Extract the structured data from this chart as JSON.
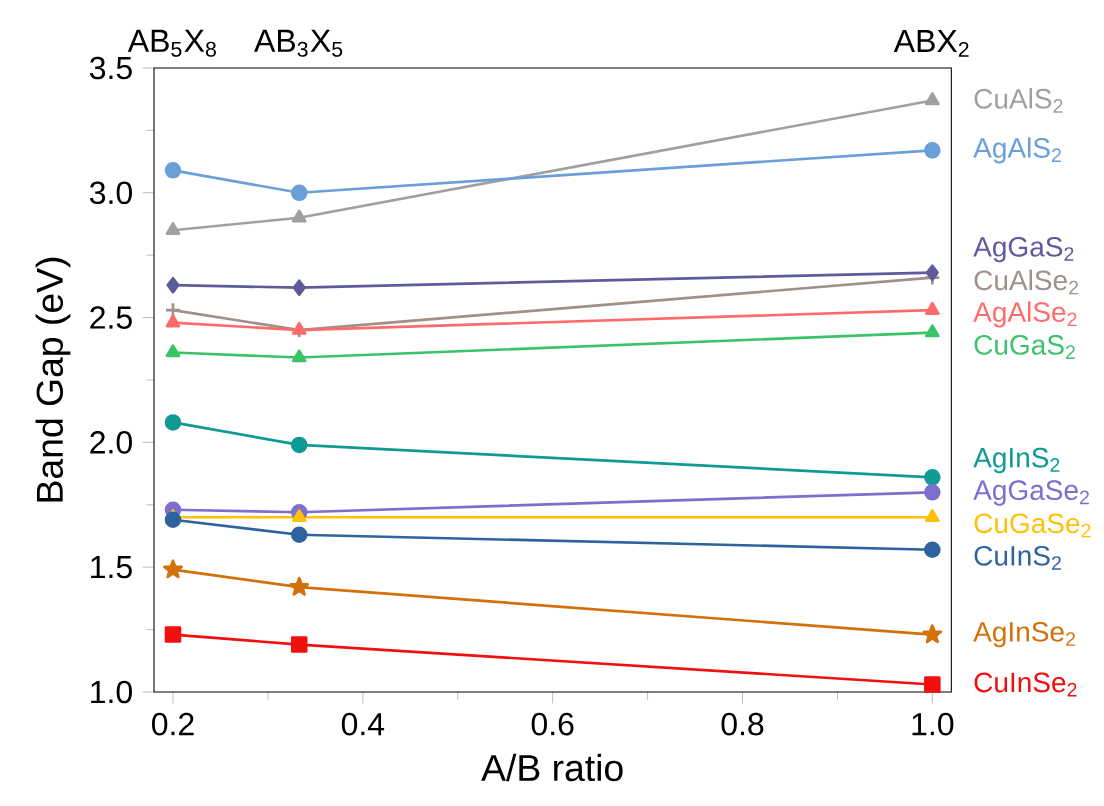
{
  "chart_data": {
    "type": "line",
    "xlabel": "A/B ratio",
    "ylabel": "Band Gap (eV)",
    "x": [
      0.2,
      0.333,
      1.0
    ],
    "xlim": [
      0.18,
      1.02
    ],
    "ylim": [
      1.0,
      3.5
    ],
    "xticks": [
      {
        "value": 0.2,
        "label": "0.2"
      },
      {
        "value": 0.4,
        "label": "0.4"
      },
      {
        "value": 0.6,
        "label": "0.6"
      },
      {
        "value": 0.8,
        "label": "0.8"
      },
      {
        "value": 1.0,
        "label": "1.0"
      }
    ],
    "yticks": [
      {
        "value": 1.0,
        "label": "1.0"
      },
      {
        "value": 1.5,
        "label": "1.5"
      },
      {
        "value": 2.0,
        "label": "2.0"
      },
      {
        "value": 2.5,
        "label": "2.5"
      },
      {
        "value": 3.0,
        "label": "3.0"
      },
      {
        "value": 3.5,
        "label": "3.5"
      }
    ],
    "annotations": [
      "AB$_{5}$X$_{8}$",
      "AB$_{3}$X$_{5}$",
      "ABX$_{2}$"
    ],
    "grid": false,
    "legend": false,
    "line_style": "solid",
    "series": [
      {
        "name": "CuAlS$_{2}$",
        "color": "#a0a0a0",
        "marker": "triangle",
        "values": [
          2.85,
          2.9,
          3.37
        ]
      },
      {
        "name": "AgAlS$_{2}$",
        "color": "#6a9fd8",
        "marker": "circle",
        "values": [
          3.09,
          3.0,
          3.17
        ]
      },
      {
        "name": "CuAlSe$_{2}$",
        "color": "#a0908a",
        "marker": "cross",
        "values": [
          2.53,
          2.45,
          2.66
        ]
      },
      {
        "name": "AgGaS$_{2}$",
        "color": "#5e5a9c",
        "marker": "diamond",
        "values": [
          2.63,
          2.62,
          2.68
        ]
      },
      {
        "name": "AgAlSe$_{2}$",
        "color": "#ff6b6b",
        "marker": "triangle",
        "values": [
          2.48,
          2.45,
          2.53
        ]
      },
      {
        "name": "CuGaS$_{2}$",
        "color": "#3cc36a",
        "marker": "triangle",
        "values": [
          2.36,
          2.34,
          2.44
        ]
      },
      {
        "name": "AgInS$_{2}$",
        "color": "#0f9a96",
        "marker": "circle",
        "values": [
          2.08,
          1.99,
          1.86
        ]
      },
      {
        "name": "AgGaSe$_{2}$",
        "color": "#7c6fd0",
        "marker": "circle",
        "values": [
          1.73,
          1.72,
          1.8
        ]
      },
      {
        "name": "CuGaSe$_{2}$",
        "color": "#ffc107",
        "marker": "triangle",
        "values": [
          1.7,
          1.7,
          1.7
        ]
      },
      {
        "name": "CuInS$_{2}$",
        "color": "#2f63a0",
        "marker": "circle",
        "values": [
          1.69,
          1.63,
          1.57
        ]
      },
      {
        "name": "AgInSe$_{2}$",
        "color": "#d4700a",
        "marker": "star",
        "values": [
          1.49,
          1.42,
          1.23
        ]
      },
      {
        "name": "CuInSe$_{2}$",
        "color": "#f01010",
        "marker": "square",
        "values": [
          1.23,
          1.19,
          1.03
        ]
      }
    ]
  }
}
